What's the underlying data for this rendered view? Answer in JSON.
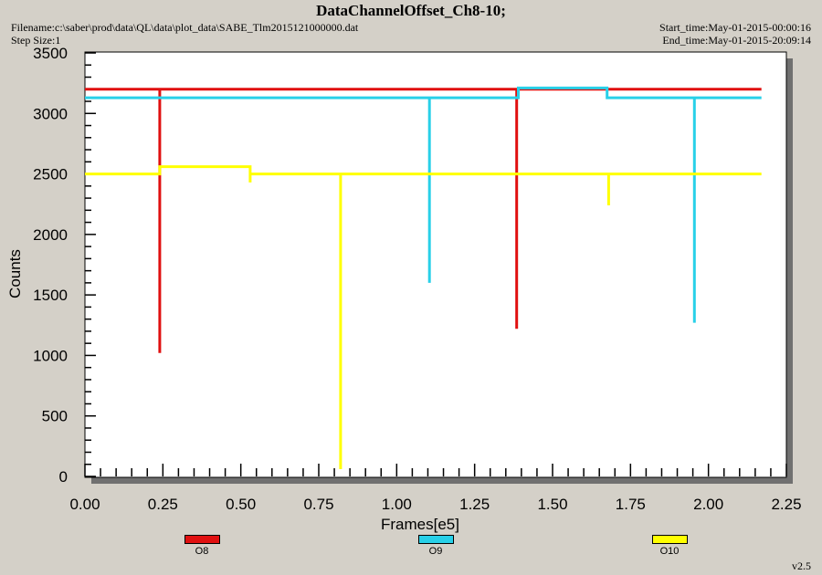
{
  "header": {
    "title": "DataChannelOffset_Ch8-10;",
    "filename": "Filename:c:\\saber\\prod\\data\\QL\\data\\plot_data\\SABE_Tlm2015121000000.dat",
    "step_size": "Step Size:1",
    "start_time": "Start_time:May-01-2015-00:00:16",
    "end_time": "End_time:May-01-2015-20:09:14"
  },
  "version": "v2.5",
  "chart_data": {
    "type": "line",
    "title": "DataChannelOffset_Ch8-10;",
    "xlabel": "Frames[e5]",
    "ylabel": "Counts",
    "xlim": [
      0,
      2.25
    ],
    "ylim": [
      0,
      3500
    ],
    "xticks": [
      "0.00",
      "0.25",
      "0.50",
      "0.75",
      "1.00",
      "1.25",
      "1.50",
      "1.75",
      "2.00",
      "2.25"
    ],
    "yticks": [
      "0",
      "500",
      "1000",
      "1500",
      "2000",
      "2500",
      "3000",
      "3500"
    ],
    "grid": false,
    "legend_position": "bottom",
    "series": [
      {
        "name": "O8",
        "color": "#e01010",
        "points": [
          [
            0.0,
            3200
          ],
          [
            0.24,
            3200
          ],
          [
            0.24,
            1020
          ],
          [
            0.24,
            3200
          ],
          [
            1.385,
            3200
          ],
          [
            1.385,
            1220
          ],
          [
            1.385,
            3200
          ],
          [
            2.17,
            3200
          ]
        ]
      },
      {
        "name": "O9",
        "color": "#28d0e8",
        "points": [
          [
            0.0,
            3130
          ],
          [
            1.105,
            3130
          ],
          [
            1.105,
            1600
          ],
          [
            1.105,
            3130
          ],
          [
            1.39,
            3130
          ],
          [
            1.39,
            3210
          ],
          [
            1.675,
            3210
          ],
          [
            1.675,
            3130
          ],
          [
            1.955,
            3130
          ],
          [
            1.955,
            1270
          ],
          [
            1.955,
            3130
          ],
          [
            2.17,
            3130
          ]
        ]
      },
      {
        "name": "O10",
        "color": "#ffff00",
        "points": [
          [
            0.0,
            2500
          ],
          [
            0.24,
            2500
          ],
          [
            0.24,
            2560
          ],
          [
            0.53,
            2560
          ],
          [
            0.53,
            2430
          ],
          [
            0.53,
            2500
          ],
          [
            0.82,
            2500
          ],
          [
            0.82,
            60
          ],
          [
            0.82,
            2500
          ],
          [
            1.68,
            2500
          ],
          [
            1.68,
            2240
          ],
          [
            1.68,
            2500
          ],
          [
            2.17,
            2500
          ]
        ]
      }
    ]
  }
}
